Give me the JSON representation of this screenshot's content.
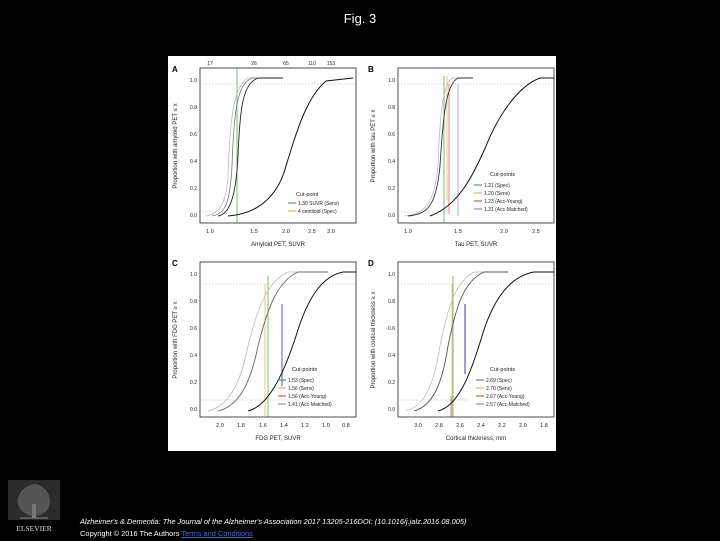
{
  "page": {
    "title": "Fig. 3"
  },
  "panels": [
    {
      "letter": "A",
      "xlabel": "Amyloid PET, SUVR",
      "ylabel": "Proportion with amyloid PET ≤ x",
      "xticks": [
        "1.0",
        "1.5",
        "2.0",
        "2.5",
        "3.0"
      ],
      "topticks": [
        "17",
        "26",
        "65",
        "110",
        "153"
      ],
      "legend_title": "Cut-point",
      "legend": [
        "1.30 SUVR (Sens)",
        "4 centiloid (Spec)"
      ]
    },
    {
      "letter": "B",
      "xlabel": "Tau PET, SUVR",
      "ylabel": "Proportion with tau PET ≤ x",
      "xticks": [
        "1.0",
        "1.5",
        "2.0",
        "2.5"
      ],
      "legend_title": "Cut-points",
      "legend": [
        "1.21 (Spec)",
        "1.20 (Sens)",
        "1.23 (Acc-Young)",
        "1.31 (Acc-Matched)"
      ]
    },
    {
      "letter": "C",
      "xlabel": "FDG PET, SUVR",
      "ylabel": "Proportion with FDG PET ≥ x",
      "xticks": [
        "2.0",
        "1.8",
        "1.6",
        "1.4",
        "1.2",
        "1.0",
        "0.8"
      ],
      "legend_title": "Cut-points",
      "legend": [
        "1.53 (Spec)",
        "1.56 (Sens)",
        "1.56 (Acc-Young)",
        "1.41 (Acc-Matched)"
      ]
    },
    {
      "letter": "D",
      "xlabel": "Cortical thickness, mm",
      "ylabel": "Proportion with cortical thickness ≥ x",
      "xticks": [
        "3.0",
        "2.8",
        "2.6",
        "2.4",
        "2.2",
        "2.0",
        "1.8"
      ],
      "legend_title": "Cut-points",
      "legend": [
        "2.69 (Spec)",
        "2.70 (Sens)",
        "2.67 (Acc-Young)",
        "2.57 (Acc-Matched)"
      ]
    }
  ],
  "yticks": [
    "0.0",
    "0.2",
    "0.4",
    "0.6",
    "0.8",
    "1.0"
  ],
  "footer": {
    "citation": "Alzheimer's & Dementia: The Journal of the Alzheimer's Association 2017 13205-216DOI: (10.1016/j.jalz.2016.08.005)",
    "copyright": "Copyright © 2016 The Authors",
    "terms_link": "Terms and Conditions",
    "publisher": "ELSEVIER"
  },
  "colors": {
    "background": "#000000",
    "figure_bg": "#ffffff",
    "spec": "#2e8b2e",
    "sens": "#d9a441",
    "acc_young": "#c0392b",
    "acc_matched": "#7b6fc8",
    "curve": "#111111",
    "link": "#3a6fd6"
  }
}
